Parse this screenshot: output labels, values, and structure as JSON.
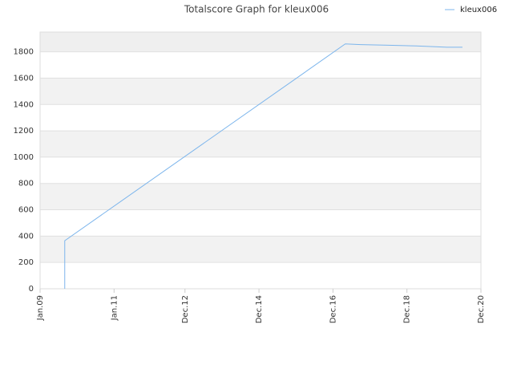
{
  "chart_data": {
    "type": "line",
    "title": "Totalscore Graph for kleux006",
    "x": [
      "2009-09",
      "2009-09",
      "2017-04",
      "2017-09",
      "2018-06",
      "2019-03",
      "2020-01",
      "2020-06"
    ],
    "series": [
      {
        "name": "kleux006",
        "color": "#7cb5ec",
        "values": [
          0,
          365,
          1860,
          1855,
          1850,
          1845,
          1835,
          1835
        ]
      }
    ],
    "xlim": [
      "2009-01",
      "2020-12"
    ],
    "xticks": [
      {
        "value": "2009-01",
        "label": "Jan.09"
      },
      {
        "value": "2011-01",
        "label": "Jan.11"
      },
      {
        "value": "2012-12",
        "label": "Dec.12"
      },
      {
        "value": "2014-12",
        "label": "Dec.14"
      },
      {
        "value": "2016-12",
        "label": "Dec.16"
      },
      {
        "value": "2018-12",
        "label": "Dec.18"
      },
      {
        "value": "2020-12",
        "label": "Dec.20"
      }
    ],
    "ylim": [
      0,
      1950
    ],
    "yticks": [
      0,
      200,
      400,
      600,
      800,
      1000,
      1200,
      1400,
      1600,
      1800
    ],
    "grid": true,
    "legend": "top-right"
  }
}
